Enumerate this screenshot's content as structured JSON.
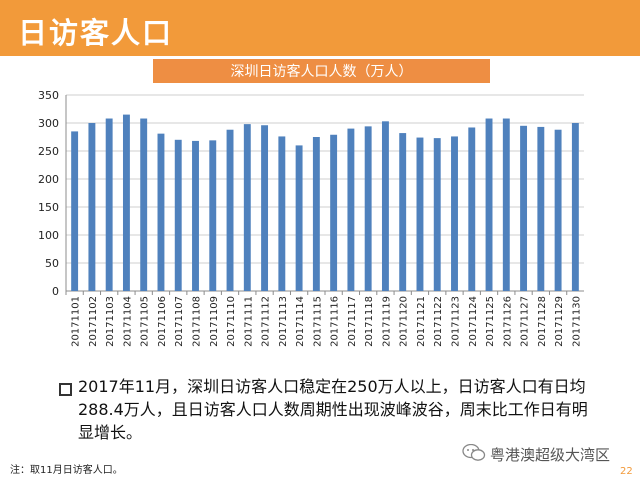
{
  "header": {
    "title": "日访客人口"
  },
  "chart_data": {
    "type": "bar",
    "title": "深圳日访客人口人数（万人）",
    "xlabel": "",
    "ylabel": "",
    "ylim": [
      0,
      350
    ],
    "yticks": [
      0,
      50,
      100,
      150,
      200,
      250,
      300,
      350
    ],
    "grid": true,
    "bar_color": "#4f81bd",
    "categories": [
      "20171101",
      "20171102",
      "20171103",
      "20171104",
      "20171105",
      "20171106",
      "20171107",
      "20171108",
      "20171109",
      "20171110",
      "20171111",
      "20171112",
      "20171113",
      "20171114",
      "20171115",
      "20171116",
      "20171117",
      "20171118",
      "20171119",
      "20171120",
      "20171121",
      "20171122",
      "20171123",
      "20171124",
      "20171125",
      "20171126",
      "20171127",
      "20171128",
      "20171129",
      "20171130"
    ],
    "values": [
      285,
      300,
      308,
      315,
      308,
      281,
      270,
      268,
      269,
      288,
      298,
      296,
      276,
      260,
      275,
      279,
      290,
      294,
      303,
      282,
      274,
      273,
      276,
      292,
      308,
      308,
      295,
      293,
      288,
      300
    ]
  },
  "summary": {
    "lines": [
      "2017年11月，深圳日访客人口稳定在250万人以上，日访客人口有日均",
      "288.4万人，且日访客人口人数周期性出现波峰波谷，周末比工作日有明",
      "显增长。"
    ]
  },
  "note": "注：取11月日访客人口。",
  "watermark": "粤港澳超级大湾区",
  "page_number": "22",
  "colors": {
    "header": "#f29a3a",
    "title_box": "#ee8e43",
    "bar": "#4f81bd"
  }
}
